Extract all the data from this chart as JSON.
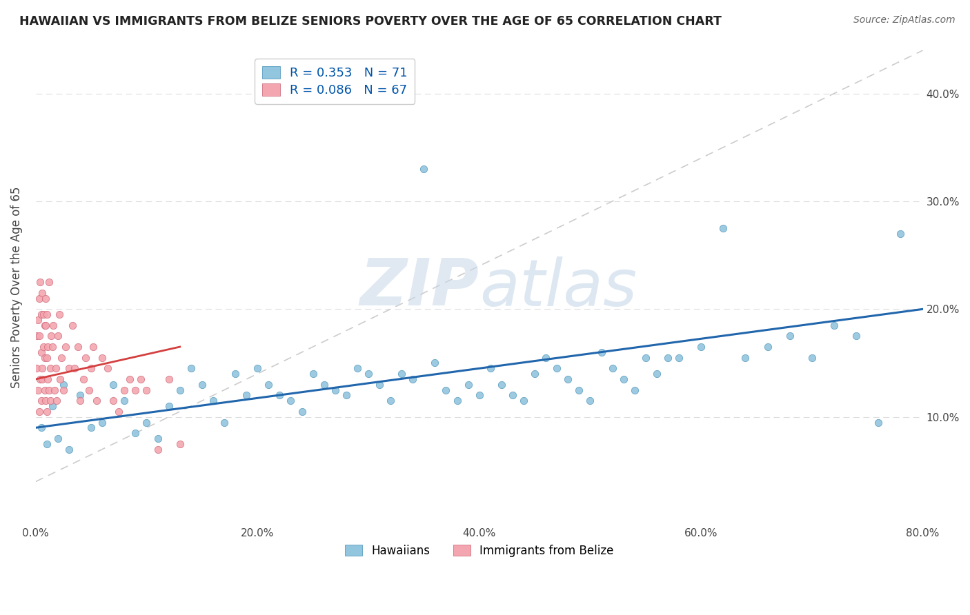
{
  "title": "HAWAIIAN VS IMMIGRANTS FROM BELIZE SENIORS POVERTY OVER THE AGE OF 65 CORRELATION CHART",
  "source": "Source: ZipAtlas.com",
  "ylabel": "Seniors Poverty Over the Age of 65",
  "xlim": [
    0.0,
    0.8
  ],
  "ylim": [
    0.0,
    0.44
  ],
  "legend_r1": "R = 0.353   N = 71",
  "legend_r2": "R = 0.086   N = 67",
  "legend_label1": "Hawaiians",
  "legend_label2": "Immigrants from Belize",
  "color_blue": "#92c5de",
  "color_pink": "#f4a6b0",
  "color_trend_blue": "#2166ac",
  "color_trend_pink": "#d43f3f",
  "color_ref_line": "#cccccc",
  "watermark_zip": "ZIP",
  "watermark_atlas": "atlas",
  "hawaiians_x": [
    0.005,
    0.01,
    0.015,
    0.02,
    0.025,
    0.03,
    0.04,
    0.05,
    0.06,
    0.07,
    0.08,
    0.09,
    0.1,
    0.11,
    0.12,
    0.13,
    0.14,
    0.15,
    0.16,
    0.17,
    0.18,
    0.19,
    0.2,
    0.21,
    0.22,
    0.23,
    0.24,
    0.25,
    0.26,
    0.27,
    0.28,
    0.29,
    0.3,
    0.31,
    0.32,
    0.33,
    0.34,
    0.35,
    0.36,
    0.37,
    0.38,
    0.39,
    0.4,
    0.41,
    0.42,
    0.43,
    0.44,
    0.45,
    0.46,
    0.47,
    0.48,
    0.49,
    0.5,
    0.51,
    0.52,
    0.53,
    0.54,
    0.55,
    0.56,
    0.57,
    0.58,
    0.6,
    0.62,
    0.64,
    0.66,
    0.68,
    0.7,
    0.72,
    0.74,
    0.76,
    0.78
  ],
  "hawaiians_y": [
    0.09,
    0.075,
    0.11,
    0.08,
    0.13,
    0.07,
    0.12,
    0.09,
    0.095,
    0.13,
    0.115,
    0.085,
    0.095,
    0.08,
    0.11,
    0.125,
    0.145,
    0.13,
    0.115,
    0.095,
    0.14,
    0.12,
    0.145,
    0.13,
    0.12,
    0.115,
    0.105,
    0.14,
    0.13,
    0.125,
    0.12,
    0.145,
    0.14,
    0.13,
    0.115,
    0.14,
    0.135,
    0.33,
    0.15,
    0.125,
    0.115,
    0.13,
    0.12,
    0.145,
    0.13,
    0.12,
    0.115,
    0.14,
    0.155,
    0.145,
    0.135,
    0.125,
    0.115,
    0.16,
    0.145,
    0.135,
    0.125,
    0.155,
    0.14,
    0.155,
    0.155,
    0.165,
    0.275,
    0.155,
    0.165,
    0.175,
    0.155,
    0.185,
    0.175,
    0.095,
    0.27
  ],
  "belize_x": [
    0.001,
    0.001,
    0.002,
    0.002,
    0.003,
    0.003,
    0.003,
    0.004,
    0.004,
    0.005,
    0.005,
    0.005,
    0.006,
    0.006,
    0.006,
    0.007,
    0.007,
    0.008,
    0.008,
    0.008,
    0.009,
    0.009,
    0.009,
    0.01,
    0.01,
    0.01,
    0.011,
    0.011,
    0.012,
    0.012,
    0.013,
    0.013,
    0.014,
    0.015,
    0.016,
    0.017,
    0.018,
    0.019,
    0.02,
    0.021,
    0.022,
    0.023,
    0.025,
    0.027,
    0.03,
    0.033,
    0.035,
    0.038,
    0.04,
    0.043,
    0.045,
    0.048,
    0.05,
    0.052,
    0.055,
    0.06,
    0.065,
    0.07,
    0.075,
    0.08,
    0.085,
    0.09,
    0.095,
    0.1,
    0.11,
    0.12,
    0.13
  ],
  "belize_y": [
    0.145,
    0.175,
    0.125,
    0.19,
    0.105,
    0.21,
    0.175,
    0.135,
    0.225,
    0.115,
    0.16,
    0.195,
    0.145,
    0.215,
    0.135,
    0.165,
    0.195,
    0.125,
    0.185,
    0.155,
    0.115,
    0.185,
    0.21,
    0.105,
    0.195,
    0.155,
    0.135,
    0.165,
    0.225,
    0.125,
    0.145,
    0.115,
    0.175,
    0.165,
    0.185,
    0.125,
    0.145,
    0.115,
    0.175,
    0.195,
    0.135,
    0.155,
    0.125,
    0.165,
    0.145,
    0.185,
    0.145,
    0.165,
    0.115,
    0.135,
    0.155,
    0.125,
    0.145,
    0.165,
    0.115,
    0.155,
    0.145,
    0.115,
    0.105,
    0.125,
    0.135,
    0.125,
    0.135,
    0.125,
    0.07,
    0.135,
    0.075
  ],
  "blue_trend_x": [
    0.0,
    0.8
  ],
  "blue_trend_y": [
    0.09,
    0.2
  ],
  "pink_trend_x": [
    0.0,
    0.13
  ],
  "pink_trend_y": [
    0.135,
    0.165
  ],
  "ref_line_x": [
    0.0,
    0.8
  ],
  "ref_line_y": [
    0.04,
    0.44
  ]
}
